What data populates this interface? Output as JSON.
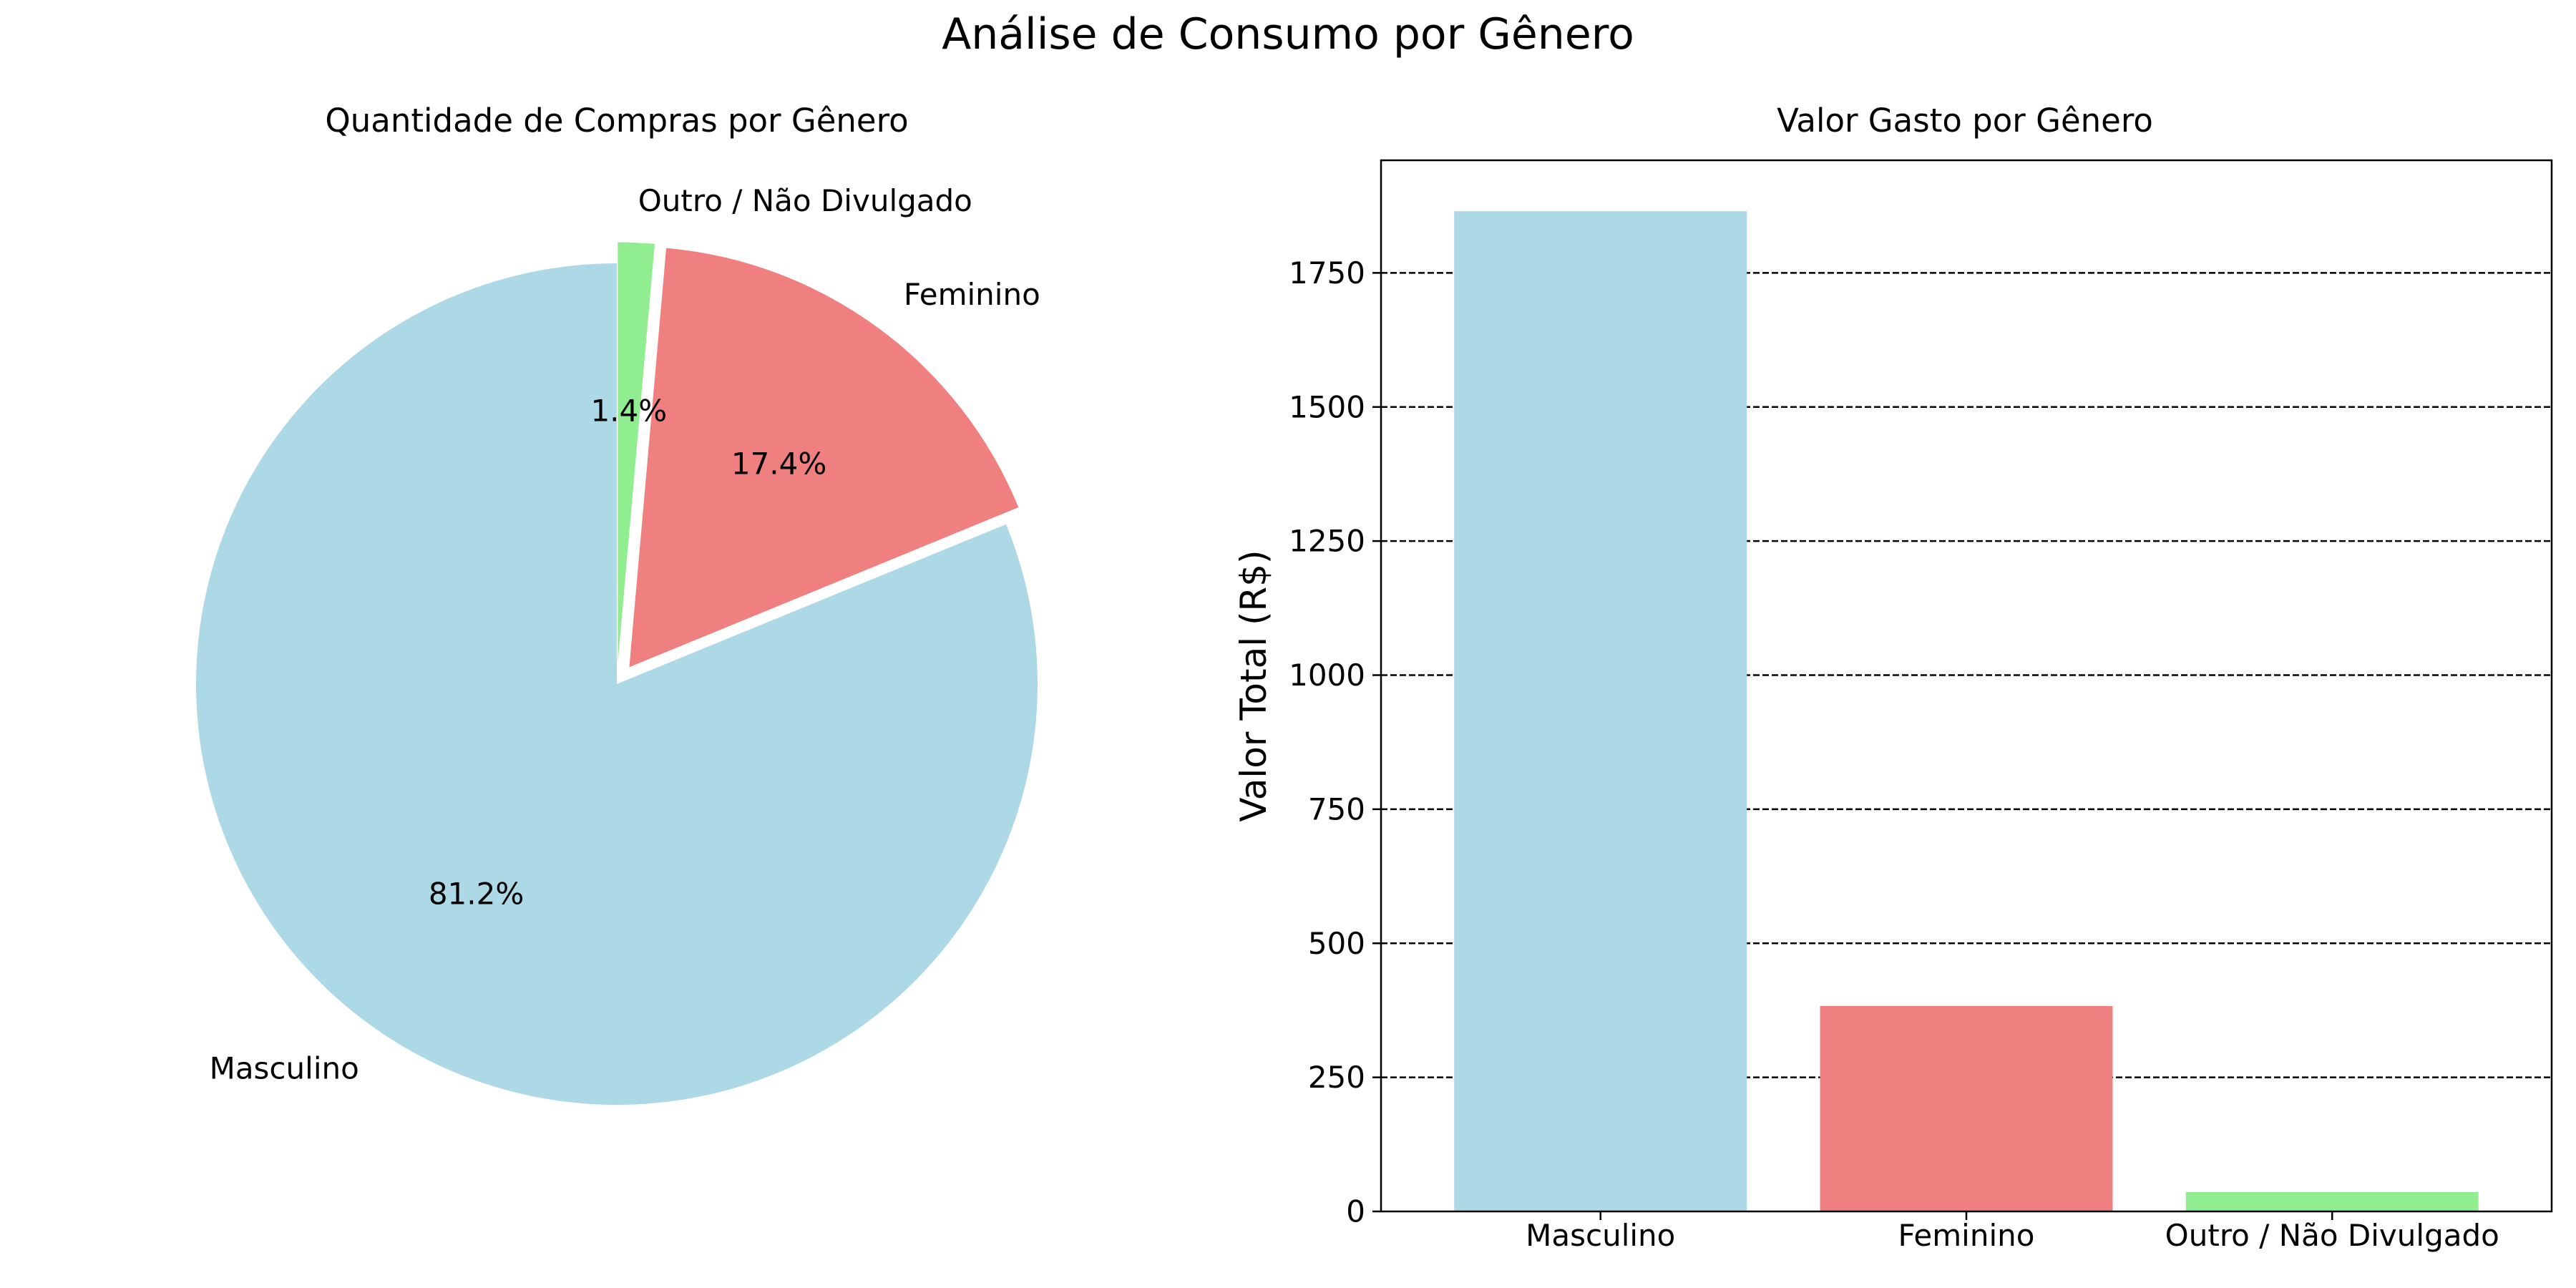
{
  "figure_title": "Análise de Consumo por Gênero",
  "colors": {
    "masculino": "#add8e6",
    "feminino": "#f08080",
    "outro": "#90ee90",
    "grid": "#000000",
    "axis": "#000000"
  },
  "chart_data": [
    {
      "type": "pie",
      "title": "Quantidade de Compras por Gênero",
      "categories": [
        "Masculino",
        "Feminino",
        "Outro / Não Divulgado"
      ],
      "values": [
        81.2,
        17.4,
        1.4
      ],
      "autopct_labels": [
        "81.2%",
        "17.4%",
        "1.4%"
      ],
      "explode": [
        0,
        0.05,
        0.05
      ],
      "start_angle_deg": 90,
      "direction": "counterclockwise",
      "colors": [
        "#add8e6",
        "#f08080",
        "#90ee90"
      ]
    },
    {
      "type": "bar",
      "title": "Valor Gasto por Gênero",
      "categories": [
        "Masculino",
        "Feminino",
        "Outro / Não Divulgado"
      ],
      "values": [
        1865,
        383,
        36
      ],
      "colors": [
        "#add8e6",
        "#f08080",
        "#90ee90"
      ],
      "xlabel": "",
      "ylabel": "Valor Total (R$)",
      "ylim": [
        0,
        1960
      ],
      "yticks": [
        0,
        250,
        500,
        750,
        1000,
        1250,
        1500,
        1750
      ],
      "grid": "y-dashed"
    }
  ]
}
